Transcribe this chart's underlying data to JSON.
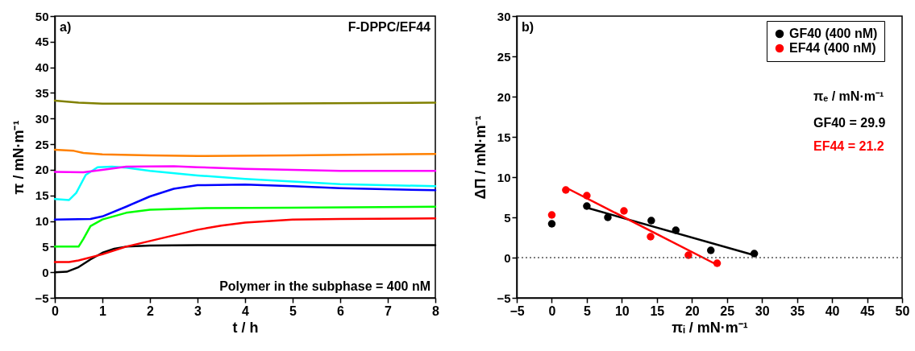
{
  "chart_data": [
    {
      "type": "line",
      "xlabel": "t / h",
      "ylabel": "π / mN·m⁻¹",
      "xlim": [
        0,
        8
      ],
      "xticks": [
        0,
        1,
        2,
        3,
        4,
        5,
        6,
        7,
        8
      ],
      "ylim": [
        -5,
        50
      ],
      "yticks": [
        -5,
        0,
        5,
        10,
        15,
        20,
        25,
        30,
        35,
        40,
        45,
        50
      ],
      "grid": false,
      "legend": false,
      "annotations": [
        "a)",
        "F-DPPC/EF44",
        "Polymer in the subphase = 400 nM"
      ],
      "series": [
        {
          "color": "#000000",
          "x": [
            0,
            0.25,
            0.5,
            0.75,
            1,
            1.25,
            1.5,
            2,
            3,
            8
          ],
          "values": [
            0,
            0.1,
            1,
            2.5,
            3.8,
            4.6,
            5,
            5.2,
            5.3,
            5.3
          ]
        },
        {
          "color": "#ff0000",
          "x": [
            0,
            0.3,
            0.5,
            1,
            1.5,
            2,
            2.5,
            3,
            3.5,
            4,
            5,
            6,
            8
          ],
          "values": [
            2,
            2,
            2.3,
            3.5,
            5,
            6.1,
            7.2,
            8.3,
            9.1,
            9.7,
            10.3,
            10.4,
            10.5
          ]
        },
        {
          "color": "#00ff00",
          "x": [
            0,
            0.5,
            0.6,
            0.75,
            1,
            1.5,
            2,
            3,
            5,
            8
          ],
          "values": [
            5,
            5,
            6.5,
            9,
            10.3,
            11.6,
            12.2,
            12.5,
            12.6,
            12.8
          ]
        },
        {
          "color": "#0000ff",
          "x": [
            0,
            0.75,
            1,
            1.5,
            2,
            2.5,
            3,
            4,
            5,
            6,
            8
          ],
          "values": [
            10.3,
            10.4,
            10.9,
            12.8,
            14.8,
            16.3,
            17,
            17.1,
            16.8,
            16.4,
            16
          ]
        },
        {
          "color": "#00ffff",
          "x": [
            0,
            0.3,
            0.45,
            0.65,
            0.9,
            1.2,
            1.5,
            2,
            3,
            4,
            5,
            6,
            8
          ],
          "values": [
            14.3,
            14.1,
            15.5,
            19,
            20.5,
            20.6,
            20.4,
            19.8,
            18.9,
            18.2,
            17.7,
            17.2,
            16.8
          ]
        },
        {
          "color": "#ff00ff",
          "x": [
            0,
            0.6,
            1,
            1.5,
            2.5,
            3,
            4,
            5,
            6,
            8
          ],
          "values": [
            19.6,
            19.5,
            20,
            20.6,
            20.7,
            20.5,
            20.2,
            20,
            19.8,
            19.8
          ]
        },
        {
          "color": "#ff8000",
          "x": [
            0,
            0.4,
            0.6,
            1,
            2,
            3,
            5,
            8
          ],
          "values": [
            23.9,
            23.7,
            23.3,
            23,
            22.8,
            22.7,
            22.8,
            23.1
          ]
        },
        {
          "color": "#808000",
          "x": [
            0,
            0.5,
            1,
            4,
            8
          ],
          "values": [
            33.5,
            33.1,
            32.9,
            32.9,
            33.1
          ]
        }
      ]
    },
    {
      "type": "scatter",
      "xlabel": "πᵢ / mN·m⁻¹",
      "ylabel": "ΔΠ / mN·m⁻¹",
      "xlim": [
        -5,
        50
      ],
      "xticks": [
        -5,
        0,
        5,
        10,
        15,
        20,
        25,
        30,
        35,
        40,
        45,
        50
      ],
      "ylim": [
        -5,
        30
      ],
      "yticks": [
        -5,
        0,
        5,
        10,
        15,
        20,
        25,
        30
      ],
      "grid": false,
      "legend": "top right",
      "annotations": [
        "b)",
        "πₑ / mN·m⁻¹",
        "GF40  =  29.9",
        "EF44  =  21.2"
      ],
      "ref_lines": [
        {
          "axis": "y",
          "value": 0,
          "color": "#555555",
          "line_style": "dotted"
        }
      ],
      "series": [
        {
          "name": "GF40 (400 nM)",
          "color": "#000000",
          "x": [
            0,
            5,
            8,
            14.2,
            17.7,
            22.7,
            28.9
          ],
          "values": [
            4.2,
            6.4,
            5,
            4.6,
            3.4,
            0.9,
            0.5
          ]
        },
        {
          "name": "EF44 (400 nM)",
          "color": "#ff0000",
          "x": [
            0,
            2,
            5,
            10.3,
            14.1,
            19.5,
            23.6
          ],
          "values": [
            5.3,
            8.4,
            7.7,
            5.8,
            2.6,
            0.3,
            -0.7
          ]
        },
        {
          "type": "line",
          "color": "#000000",
          "x": [
            5,
            28.9
          ],
          "values": [
            6.2,
            0.3
          ]
        },
        {
          "type": "line",
          "color": "#ff0000",
          "x": [
            2,
            23.6
          ],
          "values": [
            8.7,
            -0.9
          ]
        }
      ]
    }
  ]
}
